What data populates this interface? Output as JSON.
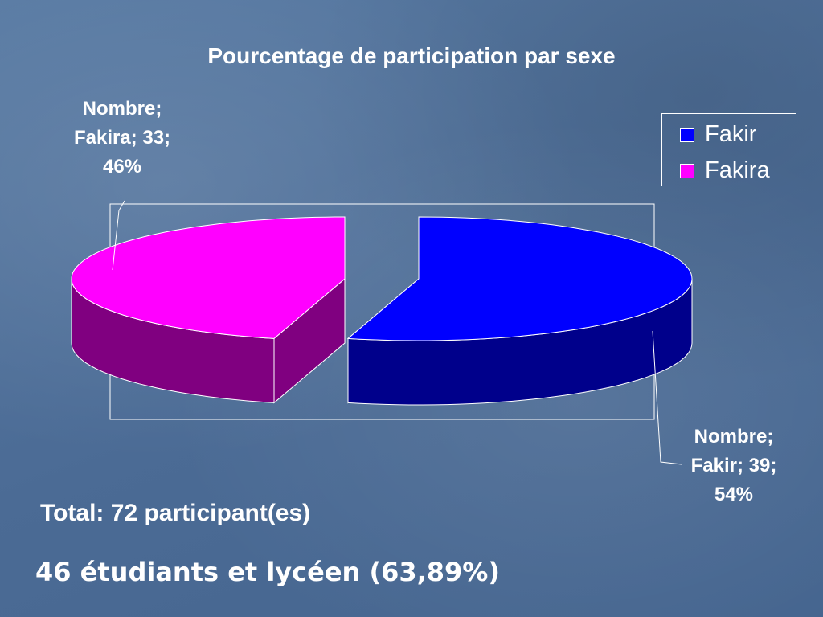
{
  "colors": {
    "fakir_top": "#0000ff",
    "fakir_side": "#00008b",
    "fakira_top": "#ff00ff",
    "fakira_side": "#800080",
    "outline": "#ffffff"
  },
  "chart_data": {
    "type": "pie",
    "title": "Pourcentage de participation par sexe",
    "slices": [
      {
        "name": "Fakir",
        "value": 39,
        "percent": 54,
        "label_lines": [
          "Nombre;",
          "Fakir; 39;",
          "54%"
        ]
      },
      {
        "name": "Fakira",
        "value": 33,
        "percent": 46,
        "label_lines": [
          "Nombre;",
          "Fakira; 33;",
          "46%"
        ]
      }
    ],
    "legend": {
      "position": "top-right",
      "entries": [
        "Fakir",
        "Fakira"
      ]
    },
    "exploded": true,
    "three_d": true
  },
  "footer": {
    "total": "Total: 72 participant(es)",
    "students": "46 étudiants et lycéen (63,89%)"
  }
}
